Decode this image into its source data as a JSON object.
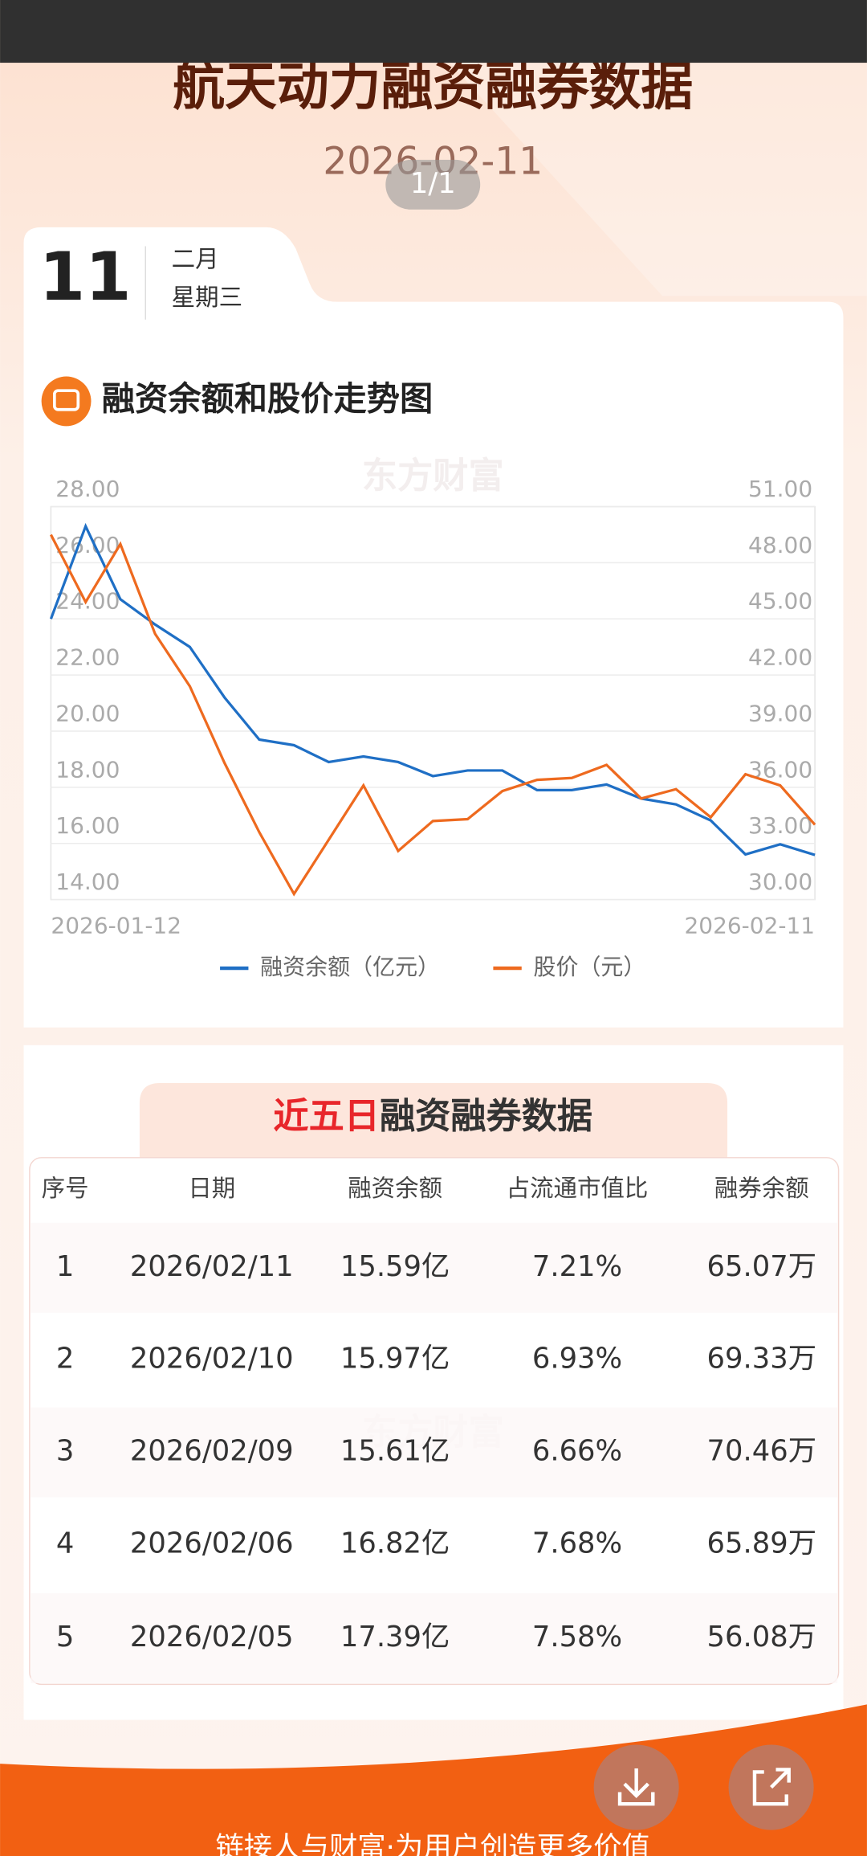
{
  "header": {
    "title": "航天动力融资融券数据",
    "date": "2026-02-11",
    "page_indicator": "1/1"
  },
  "date_card": {
    "day": "11",
    "month": "二月",
    "weekday": "星期三"
  },
  "chart_section_title": "融资余额和股价走势图",
  "watermark": "东方财富",
  "chart_data": {
    "type": "line",
    "categories": [
      "2026-01-12",
      null,
      null,
      null,
      null,
      null,
      null,
      null,
      null,
      null,
      null,
      null,
      null,
      null,
      null,
      null,
      null,
      null,
      null,
      null,
      null,
      null,
      "2026-02-11"
    ],
    "series": [
      {
        "name": "融资余额（亿元）",
        "color": "#1f6fc5",
        "axis": "y",
        "values": [
          24.0,
          27.3,
          24.7,
          23.8,
          23.0,
          21.2,
          19.7,
          19.5,
          18.9,
          19.1,
          18.9,
          18.4,
          18.6,
          18.6,
          17.9,
          17.9,
          18.1,
          17.6,
          17.39,
          16.82,
          15.61,
          15.97,
          15.59
        ]
      },
      {
        "name": "股价（元）",
        "color": "#ee6a1f",
        "axis": "y2",
        "values": [
          49.5,
          45.9,
          49.0,
          44.2,
          41.4,
          37.3,
          33.6,
          30.3,
          33.2,
          36.1,
          32.6,
          34.2,
          34.3,
          35.8,
          36.4,
          36.5,
          37.2,
          35.4,
          35.9,
          34.4,
          36.7,
          36.1,
          34.0
        ]
      }
    ],
    "ylim": [
      14,
      28
    ],
    "yticks": [
      {
        "value": 14,
        "label": "14.00"
      },
      {
        "value": 16,
        "label": "16.00"
      },
      {
        "value": 18,
        "label": "18.00"
      },
      {
        "value": 20,
        "label": "20.00"
      },
      {
        "value": 22,
        "label": "22.00"
      },
      {
        "value": 24,
        "label": "24.00"
      },
      {
        "value": 26,
        "label": "26.00"
      },
      {
        "value": 28,
        "label": "28.00"
      }
    ],
    "y2lim": [
      30,
      51
    ],
    "y2ticks": [
      {
        "value": 30,
        "label": "30.00"
      },
      {
        "value": 33,
        "label": "33.00"
      },
      {
        "value": 36,
        "label": "36.00"
      },
      {
        "value": 39,
        "label": "39.00"
      },
      {
        "value": 42,
        "label": "42.00"
      },
      {
        "value": 45,
        "label": "45.00"
      },
      {
        "value": 48,
        "label": "48.00"
      },
      {
        "value": 51,
        "label": "51.00"
      }
    ],
    "grid": true,
    "legend": "bottom"
  },
  "table": {
    "title_highlight": "近五日",
    "title_rest": "融资融券数据",
    "columns": [
      "序号",
      "日期",
      "融资余额",
      "占流通市值比",
      "融券余额"
    ],
    "rows": [
      [
        "1",
        "2026/02/11",
        "15.59亿",
        "7.21%",
        "65.07万"
      ],
      [
        "2",
        "2026/02/10",
        "15.97亿",
        "6.93%",
        "69.33万"
      ],
      [
        "3",
        "2026/02/09",
        "15.61亿",
        "6.66%",
        "70.46万"
      ],
      [
        "4",
        "2026/02/06",
        "16.82亿",
        "7.68%",
        "65.89万"
      ],
      [
        "5",
        "2026/02/05",
        "17.39亿",
        "7.58%",
        "56.08万"
      ]
    ]
  },
  "footer": {
    "slogan": "链接人与财富·为用户创造更多价值"
  }
}
